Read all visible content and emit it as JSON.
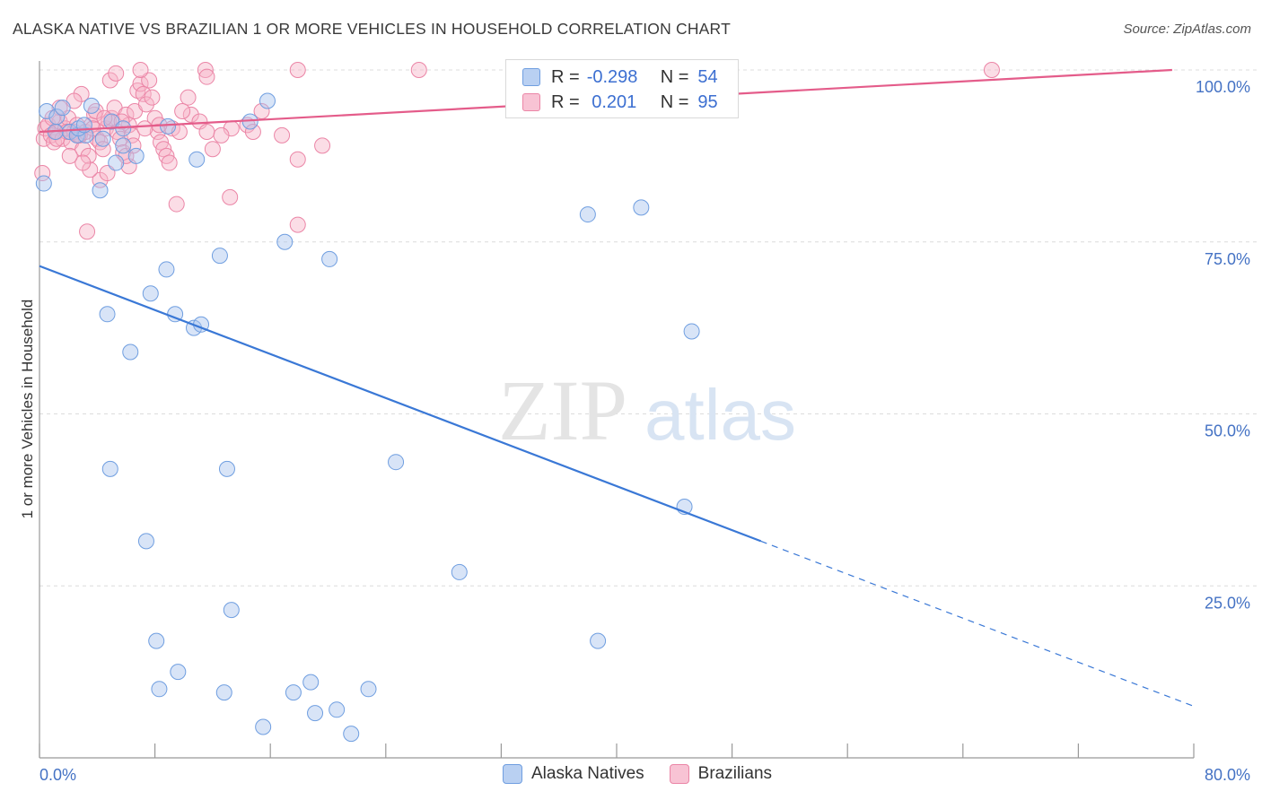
{
  "header": {
    "title": "ALASKA NATIVE VS BRAZILIAN 1 OR MORE VEHICLES IN HOUSEHOLD CORRELATION CHART",
    "source": "Source: ZipAtlas.com"
  },
  "watermark": {
    "zip": "ZIP",
    "atlas": "atlas"
  },
  "legend": {
    "rows": [
      {
        "r_label": "R =",
        "r_value": "-0.298",
        "n_label": "N =",
        "n_value": "54"
      },
      {
        "r_label": "R =",
        "r_value": " 0.201",
        "n_label": "N =",
        "n_value": "95"
      }
    ],
    "bottom": [
      "Alaska Natives",
      "Brazilians"
    ]
  },
  "colors": {
    "blue_fill": "#a9c4ee",
    "blue_stroke": "#6f9ee0",
    "blue_line": "#3a78d6",
    "pink_fill": "#f6b3c8",
    "pink_stroke": "#eb85a6",
    "pink_line": "#e45c8a",
    "tick": "#4472c4",
    "grid": "#dcdcdc"
  },
  "chart_data": {
    "type": "scatter",
    "xlabel": "",
    "ylabel": "1 or more Vehicles in Household",
    "xlim": [
      0,
      80
    ],
    "ylim": [
      0,
      100
    ],
    "x_tick_labels": [
      "0.0%",
      "80.0%"
    ],
    "y_tick_values": [
      25,
      50,
      75,
      100
    ],
    "y_tick_labels": [
      "25.0%",
      "50.0%",
      "75.0%",
      "100.0%"
    ],
    "grid": true,
    "legend_position": "top-center",
    "series": [
      {
        "name": "Alaska Natives",
        "color": "#a9c4ee",
        "r": -0.298,
        "n": 54,
        "trend": {
          "x0": 0,
          "y0": 71.5,
          "x1": 50,
          "y1": 31.5,
          "dash_to_x": 80,
          "dash_to_y": 7.5
        },
        "points": [
          [
            0.3,
            83.5
          ],
          [
            0.5,
            94.0
          ],
          [
            1.2,
            93.2
          ],
          [
            1.6,
            94.5
          ],
          [
            2.1,
            91.0
          ],
          [
            2.6,
            90.5
          ],
          [
            3.6,
            94.8
          ],
          [
            4.4,
            90.0
          ],
          [
            5.0,
            92.5
          ],
          [
            5.8,
            91.5
          ],
          [
            5.3,
            86.5
          ],
          [
            5.8,
            89.0
          ],
          [
            6.7,
            87.5
          ],
          [
            4.2,
            82.5
          ],
          [
            3.2,
            90.5
          ],
          [
            2.7,
            91.5
          ],
          [
            8.9,
            91.8
          ],
          [
            10.9,
            87.0
          ],
          [
            15.8,
            95.5
          ],
          [
            14.6,
            92.5
          ],
          [
            12.5,
            73.0
          ],
          [
            17.0,
            75.0
          ],
          [
            20.1,
            72.5
          ],
          [
            8.8,
            71.0
          ],
          [
            7.7,
            67.5
          ],
          [
            9.4,
            64.5
          ],
          [
            4.7,
            64.5
          ],
          [
            10.7,
            62.5
          ],
          [
            11.2,
            63.0
          ],
          [
            6.3,
            59.0
          ],
          [
            38.0,
            79.0
          ],
          [
            41.7,
            80.0
          ],
          [
            45.2,
            62.0
          ],
          [
            4.9,
            42.0
          ],
          [
            13.0,
            42.0
          ],
          [
            24.7,
            43.0
          ],
          [
            44.7,
            36.5
          ],
          [
            7.4,
            31.5
          ],
          [
            29.1,
            27.0
          ],
          [
            13.3,
            21.5
          ],
          [
            8.1,
            17.0
          ],
          [
            38.7,
            17.0
          ],
          [
            9.6,
            12.5
          ],
          [
            8.3,
            10.0
          ],
          [
            12.8,
            9.5
          ],
          [
            17.6,
            9.5
          ],
          [
            18.8,
            11.0
          ],
          [
            22.8,
            10.0
          ],
          [
            19.1,
            6.5
          ],
          [
            20.6,
            7.0
          ],
          [
            15.5,
            4.5
          ],
          [
            21.6,
            3.5
          ],
          [
            1.1,
            91.0
          ],
          [
            3.1,
            92.0
          ]
        ]
      },
      {
        "name": "Brazilians",
        "color": "#f6b3c8",
        "r": 0.201,
        "n": 95,
        "trend": {
          "x0": 0,
          "y0": 91.0,
          "x1": 78.5,
          "y1": 100.0
        },
        "points": [
          [
            0.2,
            85.0
          ],
          [
            0.3,
            90.0
          ],
          [
            0.4,
            91.5
          ],
          [
            0.6,
            92.0
          ],
          [
            0.8,
            90.5
          ],
          [
            1.0,
            89.5
          ],
          [
            1.2,
            91.0
          ],
          [
            1.4,
            92.5
          ],
          [
            1.6,
            90.0
          ],
          [
            1.8,
            91.5
          ],
          [
            2.0,
            93.0
          ],
          [
            2.2,
            89.5
          ],
          [
            2.4,
            91.0
          ],
          [
            2.6,
            92.0
          ],
          [
            2.8,
            90.5
          ],
          [
            3.0,
            88.5
          ],
          [
            3.2,
            91.0
          ],
          [
            3.4,
            87.5
          ],
          [
            3.6,
            92.0
          ],
          [
            3.8,
            93.5
          ],
          [
            4.0,
            90.0
          ],
          [
            4.2,
            89.5
          ],
          [
            4.4,
            88.5
          ],
          [
            4.6,
            91.5
          ],
          [
            4.8,
            92.5
          ],
          [
            5.0,
            93.0
          ],
          [
            5.2,
            94.5
          ],
          [
            5.4,
            91.0
          ],
          [
            5.6,
            90.0
          ],
          [
            5.8,
            88.0
          ],
          [
            6.0,
            93.5
          ],
          [
            6.2,
            92.0
          ],
          [
            6.4,
            90.5
          ],
          [
            6.6,
            94.0
          ],
          [
            6.8,
            97.0
          ],
          [
            7.0,
            98.0
          ],
          [
            7.2,
            96.5
          ],
          [
            7.4,
            95.0
          ],
          [
            7.6,
            98.5
          ],
          [
            7.8,
            96.0
          ],
          [
            8.0,
            93.0
          ],
          [
            8.2,
            91.0
          ],
          [
            8.4,
            89.5
          ],
          [
            8.6,
            88.5
          ],
          [
            8.8,
            87.5
          ],
          [
            9.0,
            86.5
          ],
          [
            9.2,
            91.5
          ],
          [
            2.9,
            96.5
          ],
          [
            4.9,
            98.5
          ],
          [
            5.3,
            99.5
          ],
          [
            7.0,
            100.0
          ],
          [
            11.5,
            100.0
          ],
          [
            11.6,
            99.0
          ],
          [
            17.9,
            100.0
          ],
          [
            26.3,
            100.0
          ],
          [
            66.0,
            100.0
          ],
          [
            10.3,
            96.0
          ],
          [
            10.5,
            93.5
          ],
          [
            9.9,
            94.0
          ],
          [
            11.1,
            92.5
          ],
          [
            11.6,
            91.0
          ],
          [
            12.0,
            88.5
          ],
          [
            13.3,
            91.5
          ],
          [
            14.4,
            92.0
          ],
          [
            14.8,
            91.0
          ],
          [
            15.4,
            94.0
          ],
          [
            16.8,
            90.5
          ],
          [
            17.9,
            87.0
          ],
          [
            19.6,
            89.0
          ],
          [
            17.9,
            77.5
          ],
          [
            13.2,
            81.5
          ],
          [
            9.5,
            80.5
          ],
          [
            3.3,
            76.5
          ],
          [
            4.2,
            84.0
          ],
          [
            4.7,
            85.0
          ],
          [
            3.5,
            85.5
          ],
          [
            3.0,
            86.5
          ],
          [
            2.1,
            87.5
          ],
          [
            6.2,
            86.0
          ],
          [
            6.0,
            87.5
          ],
          [
            1.4,
            94.5
          ],
          [
            2.4,
            95.5
          ],
          [
            3.9,
            94.0
          ],
          [
            4.5,
            93.0
          ],
          [
            5.7,
            92.5
          ],
          [
            7.3,
            91.5
          ],
          [
            8.3,
            92.0
          ],
          [
            9.7,
            91.0
          ],
          [
            0.9,
            93.0
          ],
          [
            1.9,
            91.0
          ],
          [
            12.6,
            90.5
          ],
          [
            1.2,
            90.0
          ],
          [
            2.7,
            90.5
          ],
          [
            3.7,
            91.5
          ],
          [
            6.5,
            89.0
          ]
        ]
      }
    ]
  }
}
